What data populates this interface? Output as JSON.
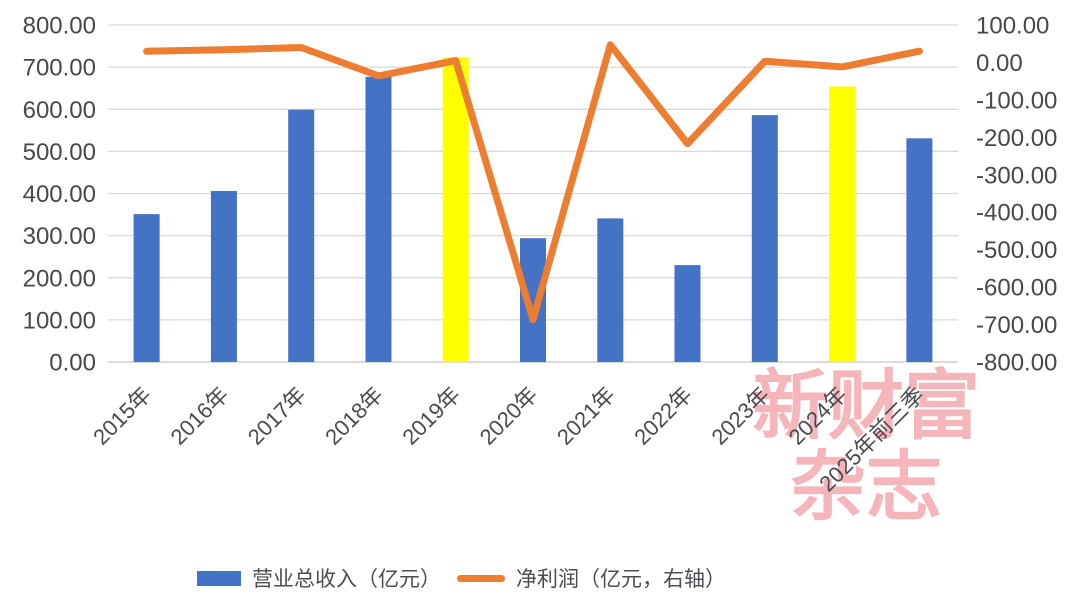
{
  "colors": {
    "bar": "#4472C4",
    "bar_highlight": "#FFFF00",
    "line": "#ED7D31",
    "gridline": "#D9D9D9",
    "axis_line": "#D2D2D2",
    "tick_text": "#47474d",
    "watermark": "#F4B6BA"
  },
  "watermark": {
    "line1": "新财富",
    "line2": "杂志"
  },
  "legend": {
    "items": [
      {
        "label": "营业总收入（亿元）",
        "swatch": "bar"
      },
      {
        "label": "净利润（亿元，右轴）",
        "swatch": "line"
      }
    ]
  },
  "chart_data": {
    "type": "bar",
    "subtype": "combo-bar-line-dual-axis",
    "title": "",
    "xlabel": "",
    "ylabel_left": "营业总收入（亿元）",
    "ylabel_right": "净利润（亿元，右轴）",
    "grid": true,
    "legend_position": "bottom",
    "categories": [
      "2015年",
      "2016年",
      "2017年",
      "2018年",
      "2019年",
      "2020年",
      "2021年",
      "2022年",
      "2023年",
      "2024年",
      "2025年前三季"
    ],
    "series": [
      {
        "name": "营业总收入（亿元）",
        "type": "bar",
        "axis": "left",
        "values": [
          351,
          406,
          599,
          677,
          723,
          294,
          341,
          230,
          586,
          654,
          531
        ],
        "highlight_indices": [
          4,
          9
        ]
      },
      {
        "name": "净利润（亿元，右轴）",
        "type": "line",
        "axis": "right",
        "values": [
          30,
          34,
          40,
          -36,
          5,
          -687,
          47,
          -217,
          3,
          -12,
          30
        ]
      }
    ],
    "left_axis": {
      "min": 0,
      "max": 800,
      "step": 100,
      "ticks": [
        "800.00",
        "700.00",
        "600.00",
        "500.00",
        "400.00",
        "300.00",
        "200.00",
        "100.00",
        "0.00"
      ]
    },
    "right_axis": {
      "min": -800,
      "max": 100,
      "step": 100,
      "ticks": [
        "100.00",
        "0.00",
        "-100.00",
        "-200.00",
        "-300.00",
        "-400.00",
        "-500.00",
        "-600.00",
        "-700.00",
        "-800.00"
      ]
    }
  }
}
